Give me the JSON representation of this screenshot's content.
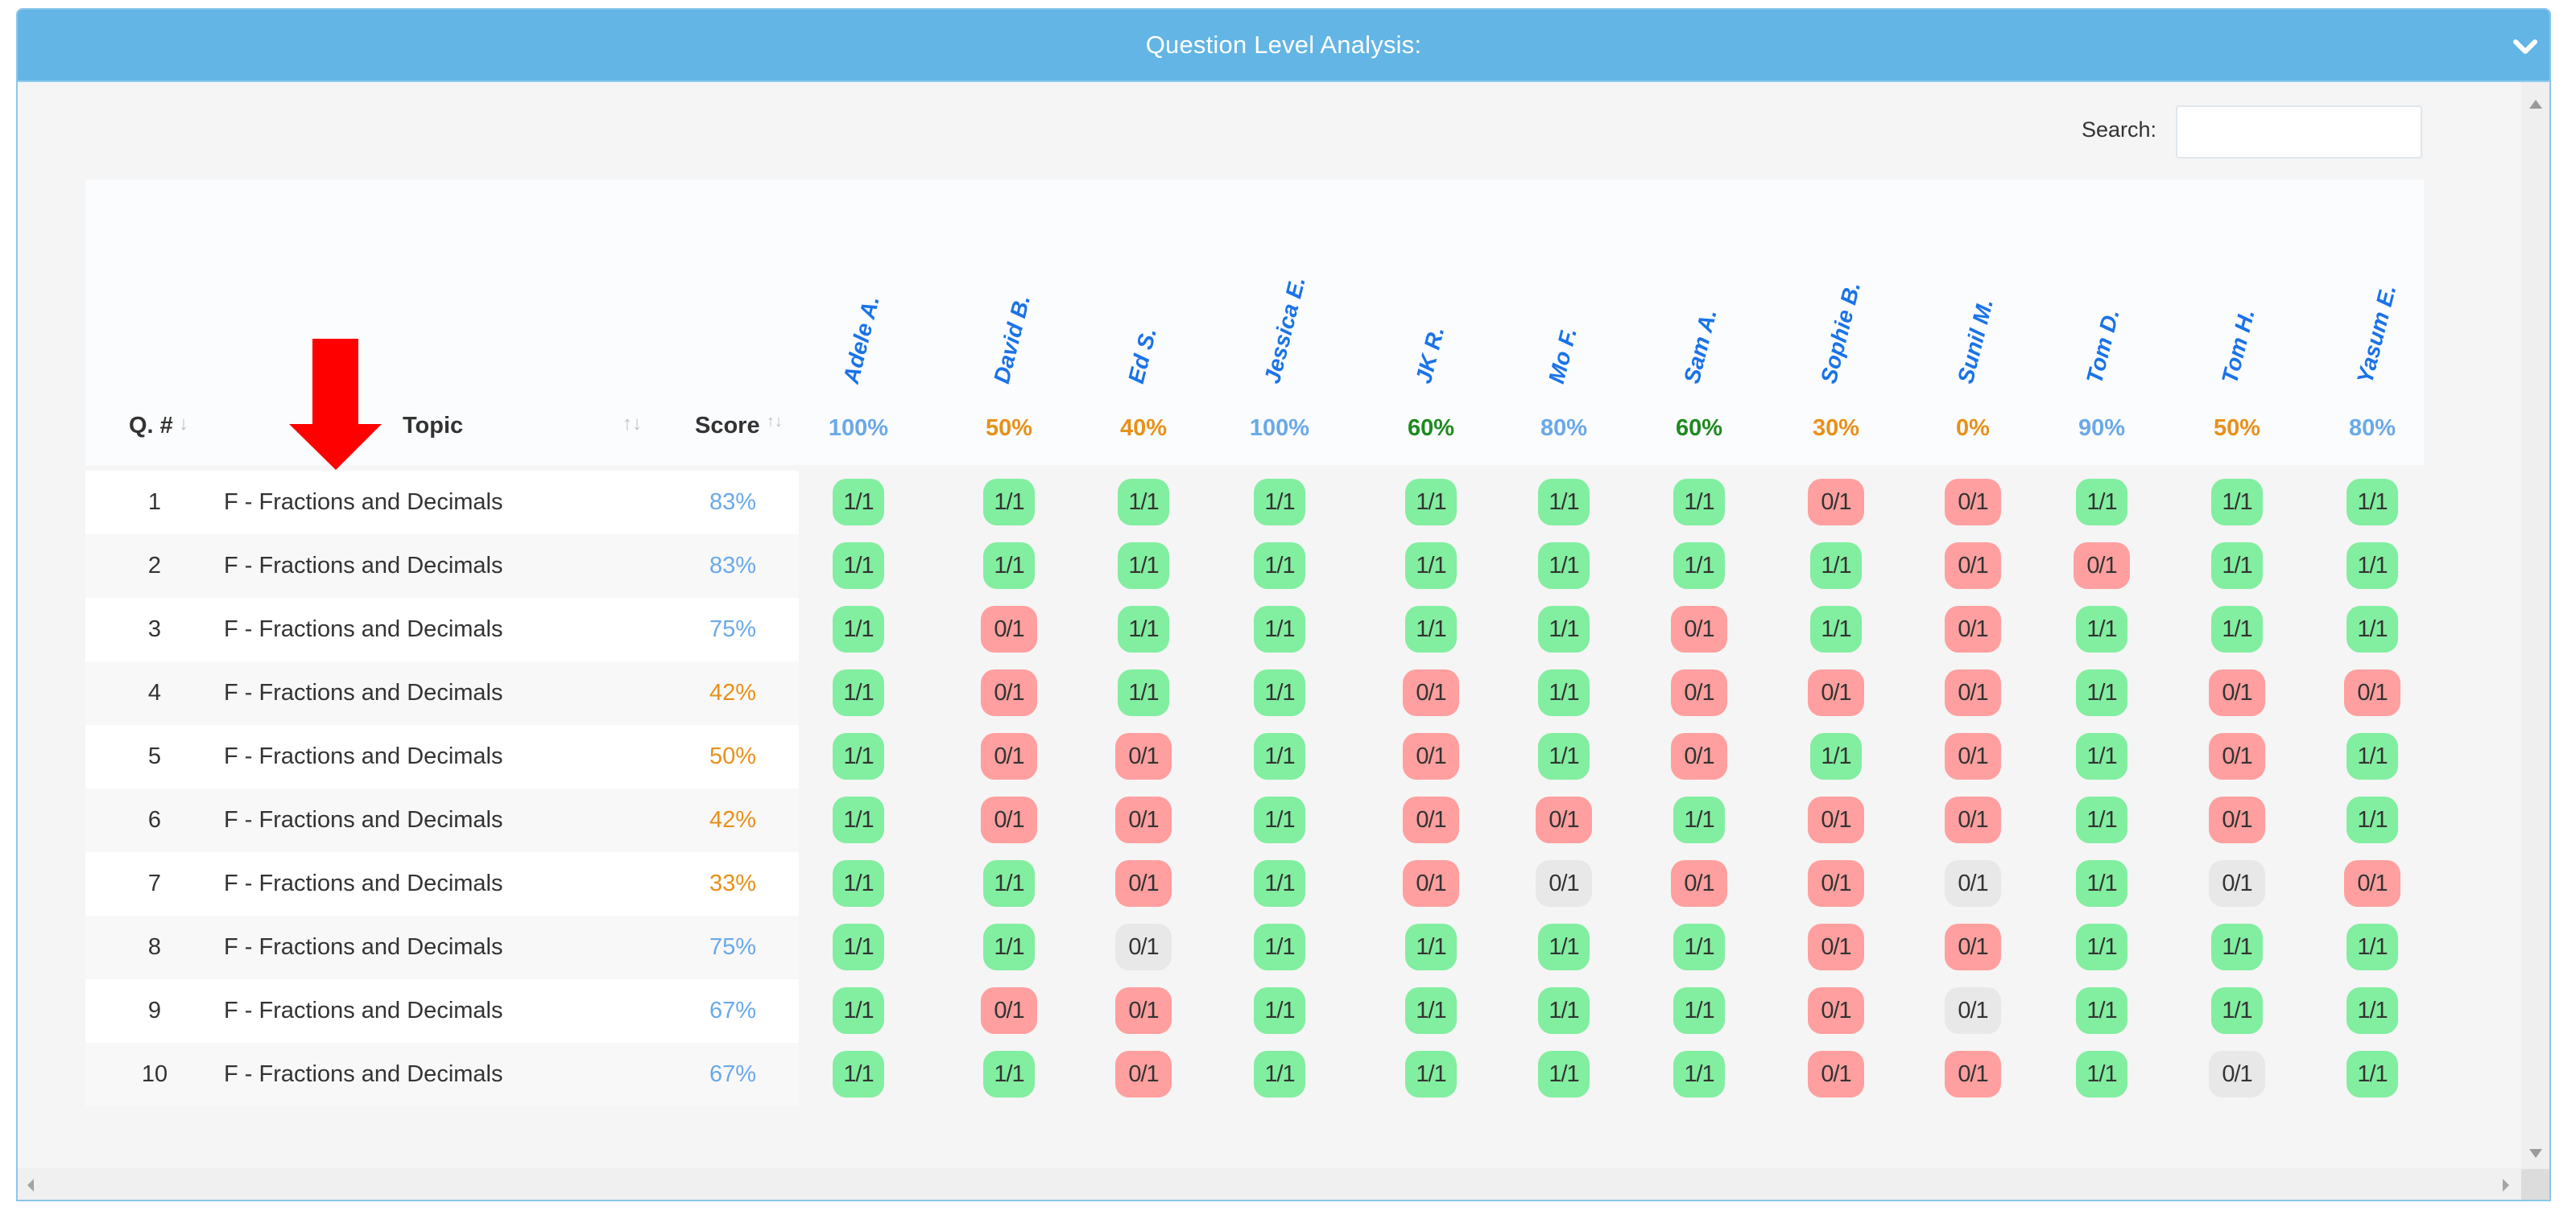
{
  "panel": {
    "title": "Question Level Analysis:",
    "header_color": "#62b5e4",
    "collapse_icon": "chevron-down-icon"
  },
  "search": {
    "label": "Search:",
    "value": "",
    "placeholder": ""
  },
  "table": {
    "headers": {
      "qnum": "Q. #",
      "topic": "Topic",
      "score": "Score"
    },
    "sort_icons": {
      "qnum": "↓",
      "topic": "↑↓",
      "score": "↑↓"
    },
    "students": [
      {
        "name": "Adele A.",
        "pct": "100%",
        "tier": "high"
      },
      {
        "name": "David B.",
        "pct": "50%",
        "tier": "low"
      },
      {
        "name": "Ed S.",
        "pct": "40%",
        "tier": "low"
      },
      {
        "name": "Jessica E.",
        "pct": "100%",
        "tier": "high"
      },
      {
        "name": "JK R.",
        "pct": "60%",
        "tier": "mid"
      },
      {
        "name": "Mo F.",
        "pct": "80%",
        "tier": "high"
      },
      {
        "name": "Sam A.",
        "pct": "60%",
        "tier": "mid"
      },
      {
        "name": "Sophie B.",
        "pct": "30%",
        "tier": "low"
      },
      {
        "name": "Sunil M.",
        "pct": "0%",
        "tier": "low"
      },
      {
        "name": "Tom D.",
        "pct": "90%",
        "tier": "high"
      },
      {
        "name": "Tom H.",
        "pct": "50%",
        "tier": "low"
      },
      {
        "name": "Yasum E.",
        "pct": "80%",
        "tier": "high"
      }
    ],
    "rows": [
      {
        "q": "1",
        "topic": "F - Fractions and Decimals",
        "score": "83%",
        "tier": "high",
        "cells": [
          "1/1",
          "1/1",
          "1/1",
          "1/1",
          "1/1",
          "1/1",
          "1/1",
          "0/1",
          "0/1",
          "1/1",
          "1/1",
          "1/1"
        ],
        "states": [
          "c",
          "c",
          "c",
          "c",
          "c",
          "c",
          "c",
          "w",
          "w",
          "c",
          "c",
          "c"
        ]
      },
      {
        "q": "2",
        "topic": "F - Fractions and Decimals",
        "score": "83%",
        "tier": "high",
        "cells": [
          "1/1",
          "1/1",
          "1/1",
          "1/1",
          "1/1",
          "1/1",
          "1/1",
          "1/1",
          "0/1",
          "0/1",
          "1/1",
          "1/1"
        ],
        "states": [
          "c",
          "c",
          "c",
          "c",
          "c",
          "c",
          "c",
          "c",
          "w",
          "w",
          "c",
          "c"
        ]
      },
      {
        "q": "3",
        "topic": "F - Fractions and Decimals",
        "score": "75%",
        "tier": "high",
        "cells": [
          "1/1",
          "0/1",
          "1/1",
          "1/1",
          "1/1",
          "1/1",
          "0/1",
          "1/1",
          "0/1",
          "1/1",
          "1/1",
          "1/1"
        ],
        "states": [
          "c",
          "w",
          "c",
          "c",
          "c",
          "c",
          "w",
          "c",
          "w",
          "c",
          "c",
          "c"
        ]
      },
      {
        "q": "4",
        "topic": "F - Fractions and Decimals",
        "score": "42%",
        "tier": "low",
        "cells": [
          "1/1",
          "0/1",
          "1/1",
          "1/1",
          "0/1",
          "1/1",
          "0/1",
          "0/1",
          "0/1",
          "1/1",
          "0/1",
          "0/1"
        ],
        "states": [
          "c",
          "w",
          "c",
          "c",
          "w",
          "c",
          "w",
          "w",
          "w",
          "c",
          "w",
          "w"
        ]
      },
      {
        "q": "5",
        "topic": "F - Fractions and Decimals",
        "score": "50%",
        "tier": "low",
        "cells": [
          "1/1",
          "0/1",
          "0/1",
          "1/1",
          "0/1",
          "1/1",
          "0/1",
          "1/1",
          "0/1",
          "1/1",
          "0/1",
          "1/1"
        ],
        "states": [
          "c",
          "w",
          "w",
          "c",
          "w",
          "c",
          "w",
          "c",
          "w",
          "c",
          "w",
          "c"
        ]
      },
      {
        "q": "6",
        "topic": "F - Fractions and Decimals",
        "score": "42%",
        "tier": "low",
        "cells": [
          "1/1",
          "0/1",
          "0/1",
          "1/1",
          "0/1",
          "0/1",
          "1/1",
          "0/1",
          "0/1",
          "1/1",
          "0/1",
          "1/1"
        ],
        "states": [
          "c",
          "w",
          "w",
          "c",
          "w",
          "w",
          "c",
          "w",
          "w",
          "c",
          "w",
          "c"
        ]
      },
      {
        "q": "7",
        "topic": "F - Fractions and Decimals",
        "score": "33%",
        "tier": "low",
        "cells": [
          "1/1",
          "1/1",
          "0/1",
          "1/1",
          "0/1",
          "0/1",
          "0/1",
          "0/1",
          "0/1",
          "1/1",
          "0/1",
          "0/1"
        ],
        "states": [
          "c",
          "c",
          "w",
          "c",
          "w",
          "n",
          "w",
          "w",
          "n",
          "c",
          "n",
          "w"
        ]
      },
      {
        "q": "8",
        "topic": "F - Fractions and Decimals",
        "score": "75%",
        "tier": "high",
        "cells": [
          "1/1",
          "1/1",
          "0/1",
          "1/1",
          "1/1",
          "1/1",
          "1/1",
          "0/1",
          "0/1",
          "1/1",
          "1/1",
          "1/1"
        ],
        "states": [
          "c",
          "c",
          "n",
          "c",
          "c",
          "c",
          "c",
          "w",
          "w",
          "c",
          "c",
          "c"
        ]
      },
      {
        "q": "9",
        "topic": "F - Fractions and Decimals",
        "score": "67%",
        "tier": "high",
        "cells": [
          "1/1",
          "0/1",
          "0/1",
          "1/1",
          "1/1",
          "1/1",
          "1/1",
          "0/1",
          "0/1",
          "1/1",
          "1/1",
          "1/1"
        ],
        "states": [
          "c",
          "w",
          "w",
          "c",
          "c",
          "c",
          "c",
          "w",
          "n",
          "c",
          "c",
          "c"
        ]
      },
      {
        "q": "10",
        "topic": "F - Fractions and Decimals",
        "score": "67%",
        "tier": "high",
        "cells": [
          "1/1",
          "1/1",
          "0/1",
          "1/1",
          "1/1",
          "1/1",
          "1/1",
          "0/1",
          "0/1",
          "1/1",
          "0/1",
          "1/1"
        ],
        "states": [
          "c",
          "c",
          "w",
          "c",
          "c",
          "c",
          "c",
          "w",
          "w",
          "c",
          "n",
          "c"
        ]
      }
    ]
  },
  "colors": {
    "correct_bg": "#82eea0",
    "wrong_bg": "#ff9f9f",
    "unanswered_bg": "#e8e8e8",
    "tier_high": "#6aa9e8",
    "tier_mid": "#1e8a1e",
    "tier_low": "#e8901a",
    "student_name": "#1a73e8",
    "annotation_arrow": "#ff0000"
  }
}
